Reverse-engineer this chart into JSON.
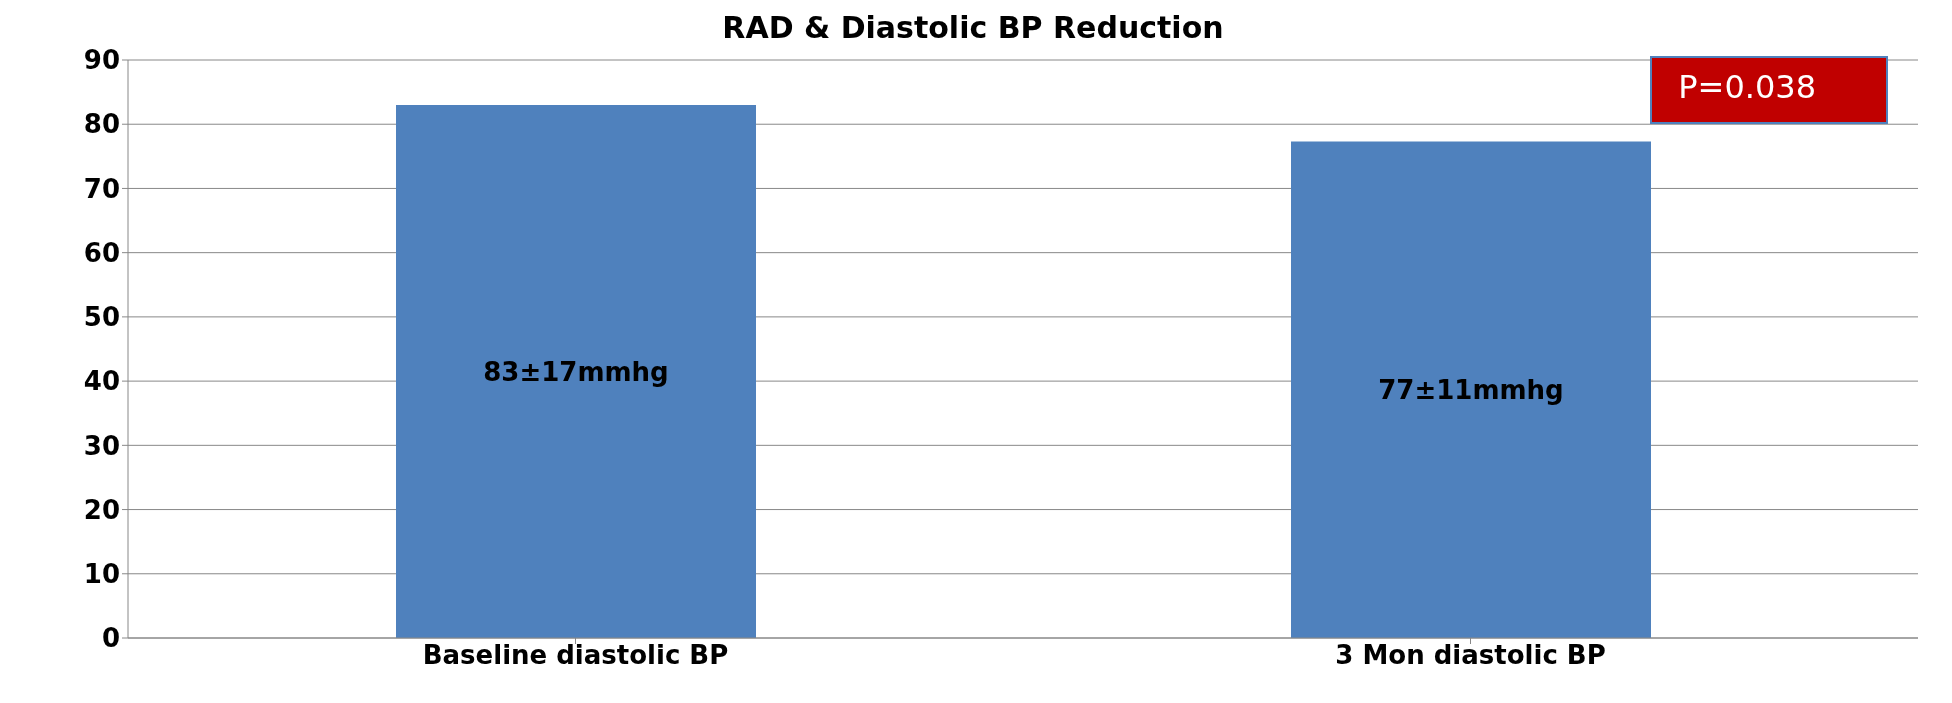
{
  "chart_data": {
    "type": "bar",
    "title": "RAD & Diastolic BP Reduction",
    "categories": [
      "Baseline diastolic BP",
      "3 Mon diastolic BP"
    ],
    "values": [
      83,
      77.3
    ],
    "color": "#4f81bd",
    "value_labels": [
      "83±17mmhg",
      "77±11mmhg"
    ],
    "ylim": [
      0,
      90
    ],
    "yticks": [
      0,
      10,
      20,
      30,
      40,
      50,
      60,
      70,
      80,
      90
    ],
    "grid": "y",
    "annotations": [
      "P=0.038"
    ]
  }
}
